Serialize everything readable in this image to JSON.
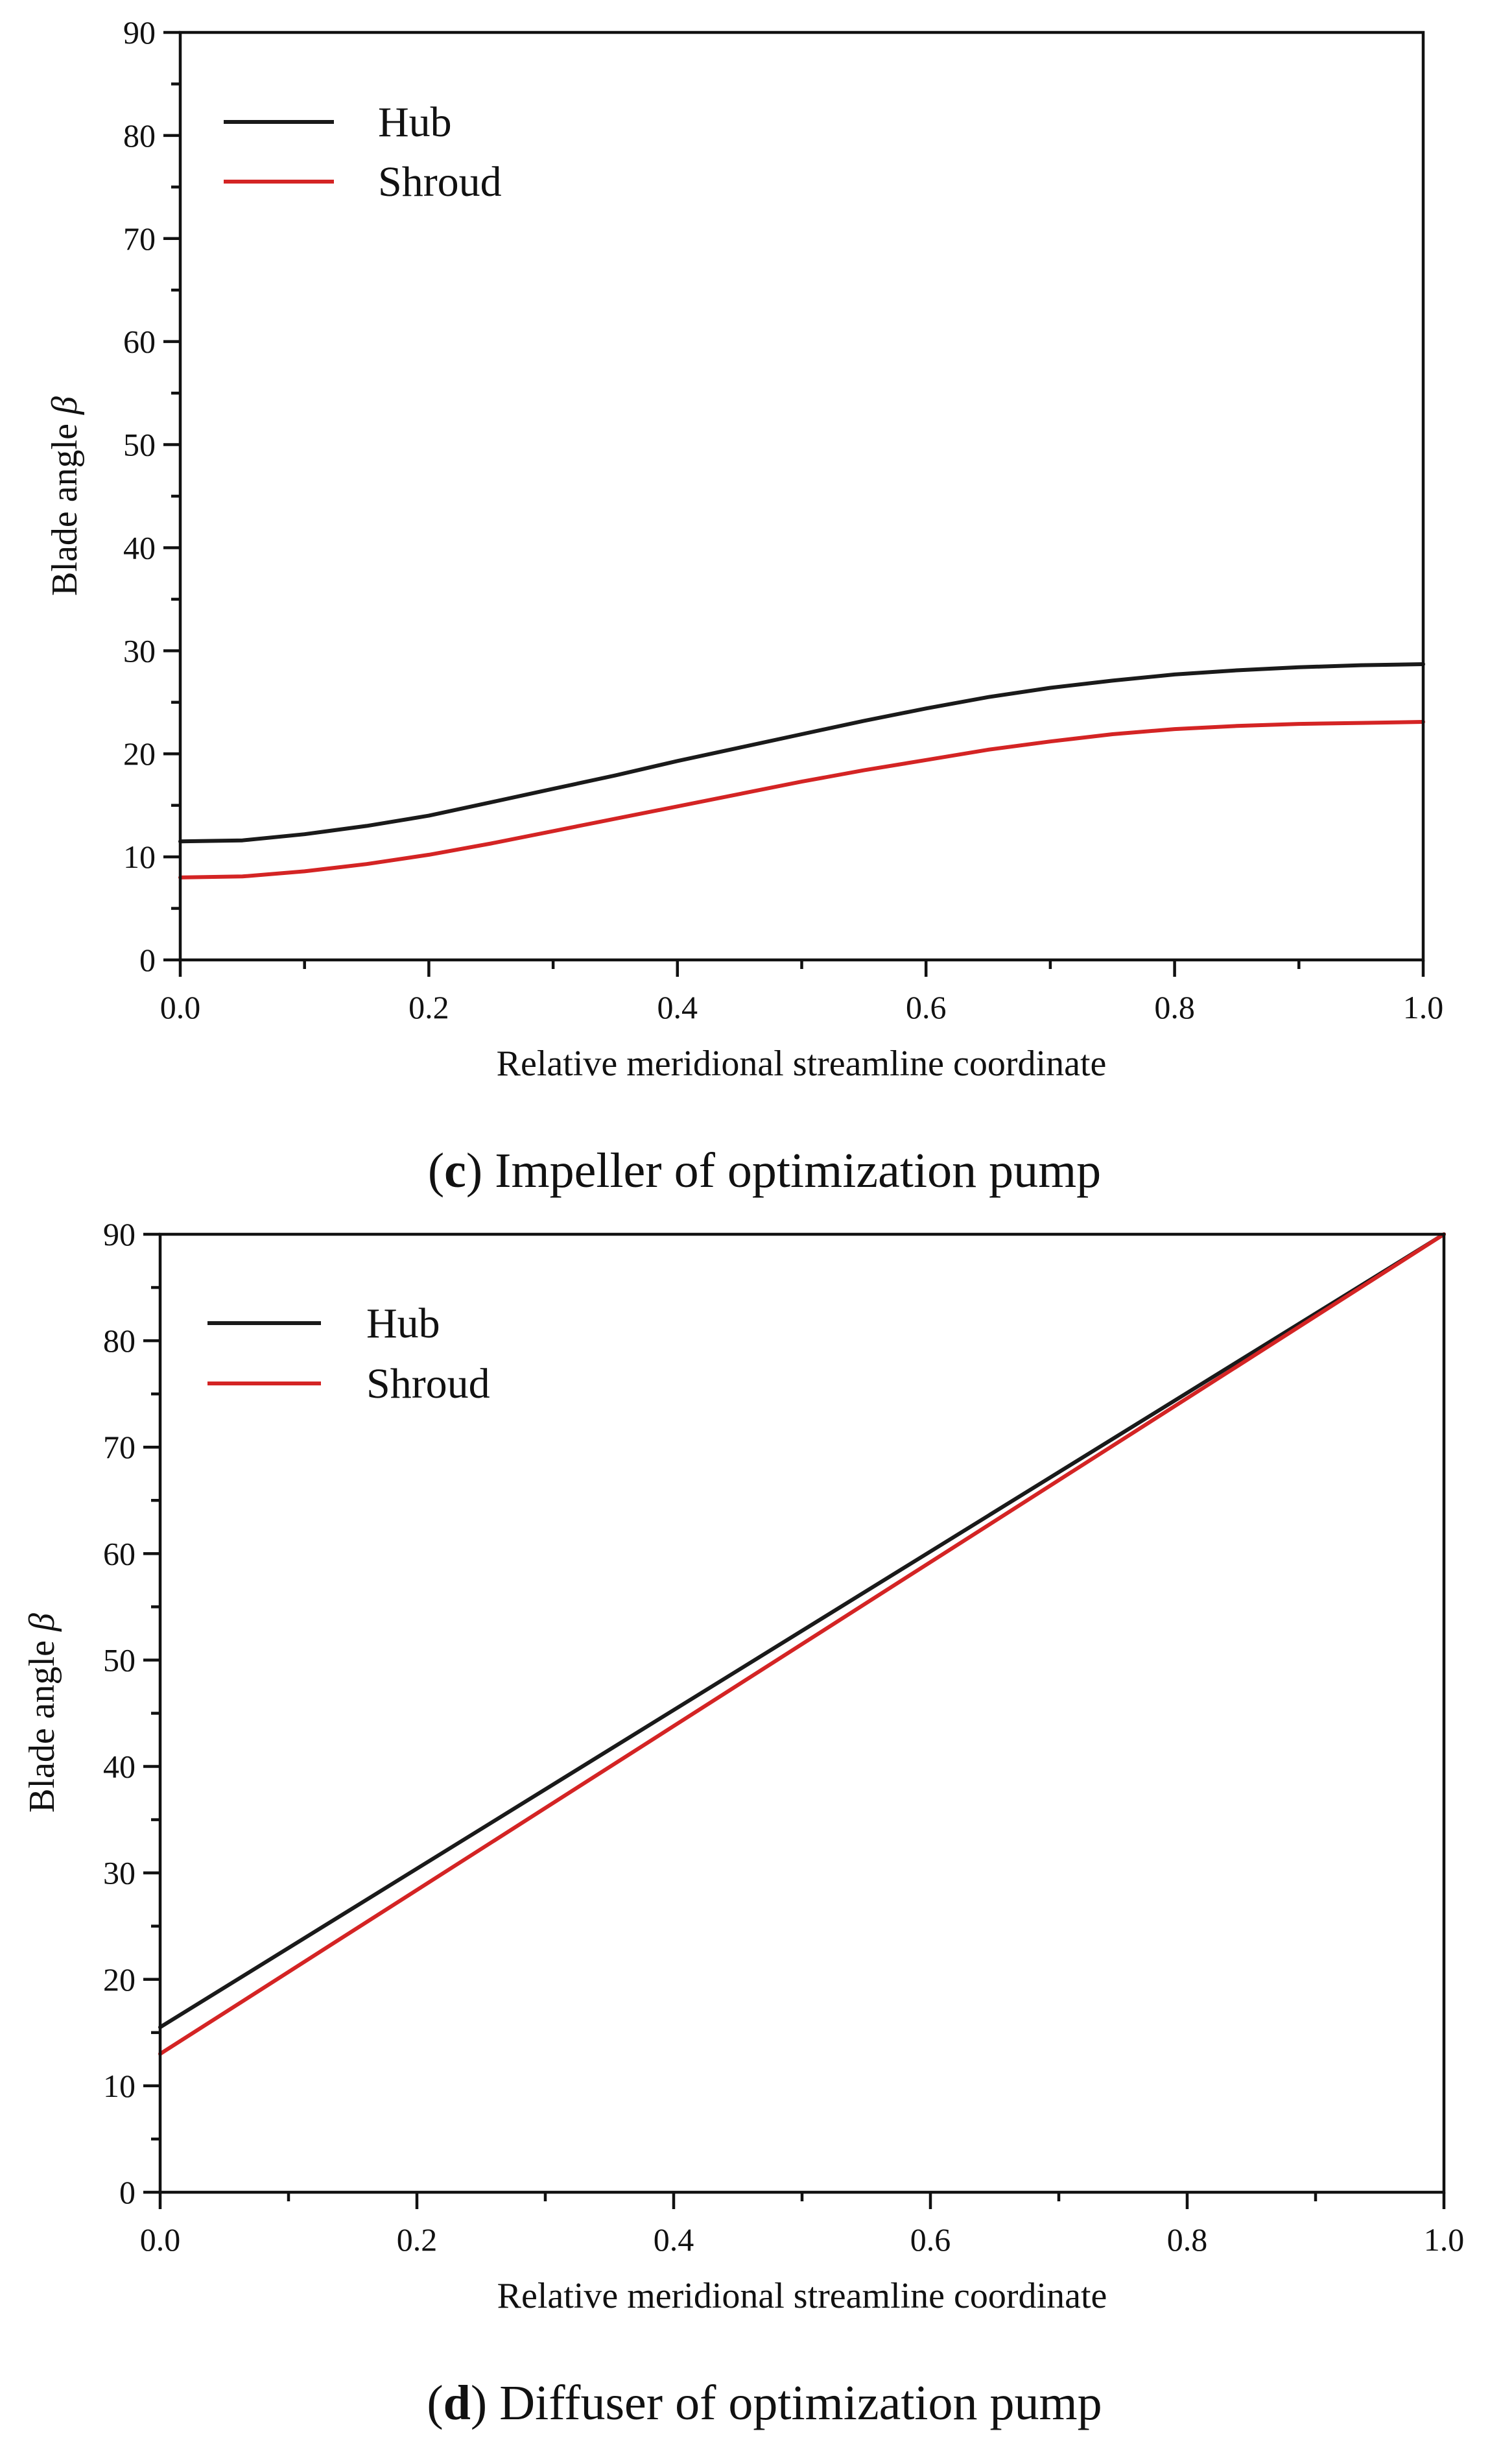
{
  "chart_data": [
    {
      "type": "line",
      "caption_letter": "c",
      "caption_text": "Impeller of optimization pump",
      "xlabel": "Relative meridional streamline coordinate",
      "ylabel": "Blade angle",
      "ylabel_symbol": "β",
      "xlim": [
        0.0,
        1.0
      ],
      "ylim": [
        0,
        90
      ],
      "x_ticks": [
        "0.0",
        "0.2",
        "0.4",
        "0.6",
        "0.8",
        "1.0"
      ],
      "y_ticks": [
        "0",
        "10",
        "20",
        "30",
        "40",
        "50",
        "60",
        "70",
        "80",
        "90"
      ],
      "legend_position": "top-left",
      "series": [
        {
          "name": "Hub",
          "color": "#1a1a1a",
          "x": [
            0.0,
            0.05,
            0.1,
            0.15,
            0.2,
            0.25,
            0.3,
            0.35,
            0.4,
            0.45,
            0.5,
            0.55,
            0.6,
            0.65,
            0.7,
            0.75,
            0.8,
            0.85,
            0.9,
            0.95,
            1.0
          ],
          "y": [
            11.5,
            11.6,
            12.2,
            13.0,
            14.0,
            15.3,
            16.6,
            17.9,
            19.3,
            20.6,
            21.9,
            23.2,
            24.4,
            25.5,
            26.4,
            27.1,
            27.7,
            28.1,
            28.4,
            28.6,
            28.7
          ]
        },
        {
          "name": "Shroud",
          "color": "#d42424",
          "x": [
            0.0,
            0.05,
            0.1,
            0.15,
            0.2,
            0.25,
            0.3,
            0.35,
            0.4,
            0.45,
            0.5,
            0.55,
            0.6,
            0.65,
            0.7,
            0.75,
            0.8,
            0.85,
            0.9,
            0.95,
            1.0
          ],
          "y": [
            8.0,
            8.1,
            8.6,
            9.3,
            10.2,
            11.3,
            12.5,
            13.7,
            14.9,
            16.1,
            17.3,
            18.4,
            19.4,
            20.4,
            21.2,
            21.9,
            22.4,
            22.7,
            22.9,
            23.0,
            23.1
          ]
        }
      ]
    },
    {
      "type": "line",
      "caption_letter": "d",
      "caption_text": "Diffuser of optimization pump",
      "xlabel": "Relative meridional streamline coordinate",
      "ylabel": "Blade angle",
      "ylabel_symbol": "β",
      "xlim": [
        0.0,
        1.0
      ],
      "ylim": [
        0,
        90
      ],
      "x_ticks": [
        "0.0",
        "0.2",
        "0.4",
        "0.6",
        "0.8",
        "1.0"
      ],
      "y_ticks": [
        "0",
        "10",
        "20",
        "30",
        "40",
        "50",
        "60",
        "70",
        "80",
        "90"
      ],
      "legend_position": "top-left",
      "series": [
        {
          "name": "Hub",
          "color": "#1a1a1a",
          "x": [
            0.0,
            1.0
          ],
          "y": [
            15.5,
            90.0
          ]
        },
        {
          "name": "Shroud",
          "color": "#d42424",
          "x": [
            0.0,
            1.0
          ],
          "y": [
            13.0,
            90.0
          ]
        }
      ]
    }
  ]
}
